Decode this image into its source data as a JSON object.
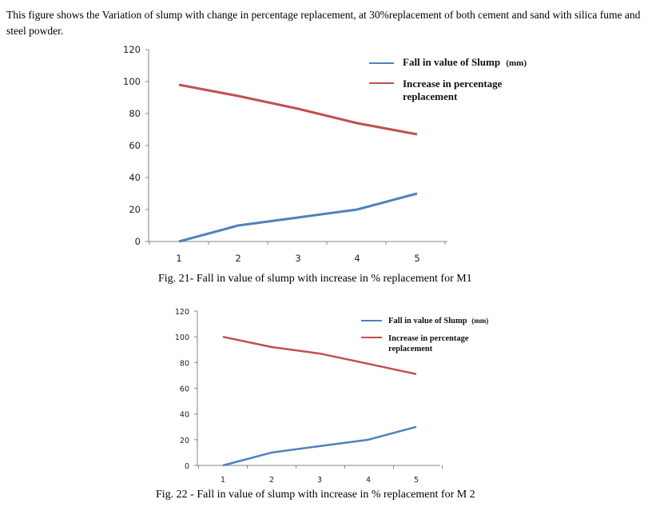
{
  "intro_text": "This figure shows the Variation of slump with change in percentage replacement, at 30%replacement of both cement and sand with silica fume and steel powder.",
  "figures": [
    {
      "caption": "Fig. 21- Fall in value of slump with increase in % replacement for M1",
      "legend": [
        {
          "main": "Fall in value of Slump",
          "unit": "(mm)",
          "color": "#4f81bd"
        },
        {
          "line1": "Increase in percentage",
          "line2": "replacement",
          "color": "#c0504d"
        }
      ]
    },
    {
      "caption": "Fig. 22 - Fall in value of slump with increase in % replacement for M 2",
      "legend": [
        {
          "main": "Fall in value of Slump",
          "unit": "(mm)",
          "color": "#4f81bd"
        },
        {
          "line1": "Increase in percentage",
          "line2": "replacement",
          "color": "#c0504d"
        }
      ]
    }
  ],
  "chart_data": [
    {
      "type": "line",
      "x": [
        1,
        2,
        3,
        4,
        5
      ],
      "series": [
        {
          "name": "Fall in value of Slump (mm)",
          "values": [
            0,
            10,
            15,
            20,
            30
          ],
          "color": "#4f81bd"
        },
        {
          "name": "Increase in percentage replacement",
          "values": [
            98,
            91,
            83,
            74,
            67
          ],
          "color": "#c0504d"
        }
      ],
      "ylim": [
        0,
        120
      ],
      "yticks": [
        0,
        20,
        40,
        60,
        80,
        100,
        120
      ],
      "xticks": [
        1,
        2,
        3,
        4,
        5
      ],
      "grid": false,
      "legend_position": "top-right"
    },
    {
      "type": "line",
      "x": [
        1,
        2,
        3,
        4,
        5
      ],
      "series": [
        {
          "name": "Fall in value of Slump (mm)",
          "values": [
            0,
            10,
            15,
            20,
            30
          ],
          "color": "#4f81bd"
        },
        {
          "name": "Increase in percentage replacement",
          "values": [
            100,
            92,
            87,
            79,
            71
          ],
          "color": "#c0504d"
        }
      ],
      "ylim": [
        0,
        120
      ],
      "yticks": [
        0,
        20,
        40,
        60,
        80,
        100,
        120
      ],
      "xticks": [
        1,
        2,
        3,
        4,
        5
      ],
      "grid": false,
      "legend_position": "top-right"
    }
  ]
}
